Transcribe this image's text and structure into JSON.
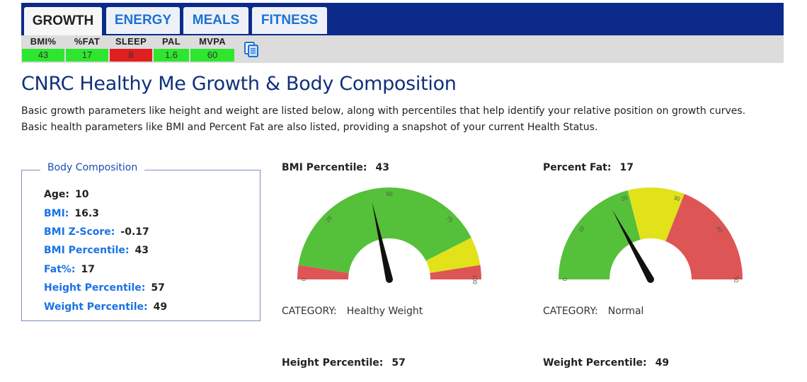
{
  "tabs": [
    {
      "label": "GROWTH",
      "active": true
    },
    {
      "label": "ENERGY",
      "active": false
    },
    {
      "label": "MEALS",
      "active": false
    },
    {
      "label": "FITNESS",
      "active": false
    }
  ],
  "metrics": [
    {
      "label": "BMI%",
      "value": "43",
      "color": "#2ee62e"
    },
    {
      "label": "%FAT",
      "value": "17",
      "color": "#2ee62e"
    },
    {
      "label": "SLEEP",
      "value": "8",
      "color": "#e02020"
    },
    {
      "label": "PAL",
      "value": "1.6",
      "color": "#2ee62e"
    },
    {
      "label": "MVPA",
      "value": "60",
      "color": "#2ee62e"
    }
  ],
  "copy_icon": "copy-icon",
  "page": {
    "title": "CNRC Healthy Me Growth & Body Composition",
    "desc1": "Basic growth parameters like height and weight are listed below, along with percentiles that help identify your relative position on growth curves.",
    "desc2": "Basic health parameters like BMI and Percent Fat are also listed, providing a snapshot of your current Health Status."
  },
  "body_composition": {
    "legend": "Body Composition",
    "rows": [
      {
        "key": "Age:",
        "value": "10"
      },
      {
        "key": "BMI:",
        "value": "16.3"
      },
      {
        "key": "BMI Z-Score:",
        "value": "-0.17"
      },
      {
        "key": "BMI Percentile:",
        "value": "43"
      },
      {
        "key": "Fat%:",
        "value": "17"
      },
      {
        "key": "Height Percentile:",
        "value": "57"
      },
      {
        "key": "Weight Percentile:",
        "value": "49"
      }
    ]
  },
  "gauges": {
    "bmi": {
      "title": "BMI Percentile:",
      "value": "43",
      "category_label": "CATEGORY:",
      "category": "Healthy Weight",
      "min": 0,
      "max": 100,
      "needle": 43,
      "ticks": [
        "0",
        "25",
        "50",
        "75",
        "100"
      ],
      "bands": [
        {
          "from": 0,
          "to": 5,
          "color": "#dd5555"
        },
        {
          "from": 5,
          "to": 85,
          "color": "#55c03a"
        },
        {
          "from": 85,
          "to": 95,
          "color": "#e2e21a"
        },
        {
          "from": 95,
          "to": 100,
          "color": "#dd5555"
        }
      ]
    },
    "fat": {
      "title": "Percent Fat:",
      "value": "17",
      "category_label": "CATEGORY:",
      "category": "Normal",
      "min": 0,
      "max": 50,
      "needle": 17,
      "ticks": [
        "0",
        "10",
        "20",
        "30",
        "40",
        "50"
      ],
      "bands": [
        {
          "from": 0,
          "to": 21,
          "color": "#55c03a"
        },
        {
          "from": 21,
          "to": 31,
          "color": "#e2e21a"
        },
        {
          "from": 31,
          "to": 50,
          "color": "#dd5555"
        }
      ]
    }
  },
  "lower": {
    "height_title": "Height Percentile:",
    "height_value": "57",
    "weight_title": "Weight Percentile:",
    "weight_value": "49"
  }
}
